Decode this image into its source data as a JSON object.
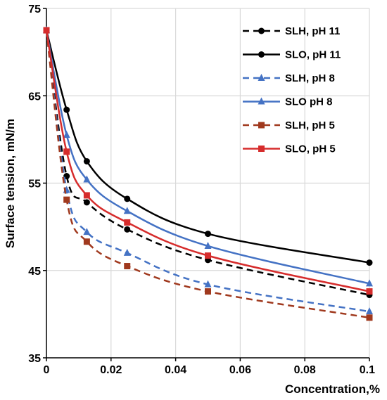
{
  "chart_data": {
    "type": "line",
    "title": "",
    "xlabel": "Concentration,%",
    "ylabel": "Surface tension, mN/m",
    "xlim": [
      0,
      0.1
    ],
    "ylim": [
      35,
      75
    ],
    "xticks": [
      0,
      0.02,
      0.04,
      0.06,
      0.08,
      0.1
    ],
    "xtick_labels": [
      "0",
      "0.02",
      "0.04",
      "0.06",
      "0.08",
      "0.1"
    ],
    "yticks": [
      35,
      45,
      55,
      65,
      75
    ],
    "ytick_labels": [
      "35",
      "45",
      "55",
      "65",
      "75"
    ],
    "grid": true,
    "legend_position": "top-right",
    "series": [
      {
        "name": "SLH, pH 11",
        "color": "#000000",
        "dashed": true,
        "marker": "circle",
        "x": [
          0,
          0.00625,
          0.0125,
          0.025,
          0.05,
          0.1
        ],
        "y": [
          72.5,
          55.8,
          52.8,
          49.7,
          46.2,
          42.2
        ]
      },
      {
        "name": "SLO, pH 11",
        "color": "#000000",
        "dashed": false,
        "marker": "circle",
        "x": [
          0,
          0.00625,
          0.0125,
          0.025,
          0.05,
          0.1
        ],
        "y": [
          72.5,
          63.4,
          57.5,
          53.2,
          49.2,
          45.9
        ]
      },
      {
        "name": "SLH, pH 8",
        "color": "#4472C4",
        "dashed": true,
        "marker": "triangle",
        "x": [
          0,
          0.00625,
          0.0125,
          0.025,
          0.05,
          0.1
        ],
        "y": [
          72.5,
          54.2,
          49.4,
          47.0,
          43.4,
          40.3
        ]
      },
      {
        "name": "SLO pH 8",
        "color": "#4472C4",
        "dashed": false,
        "marker": "triangle",
        "x": [
          0,
          0.00625,
          0.0125,
          0.025,
          0.05,
          0.1
        ],
        "y": [
          72.5,
          60.5,
          55.4,
          51.8,
          47.8,
          43.5
        ]
      },
      {
        "name": "SLH, pH 5",
        "color": "#A0391E",
        "dashed": true,
        "marker": "square",
        "x": [
          0,
          0.00625,
          0.0125,
          0.025,
          0.05,
          0.1
        ],
        "y": [
          72.5,
          53.1,
          48.3,
          45.5,
          42.6,
          39.6
        ]
      },
      {
        "name": "SLO, pH 5",
        "color": "#D62C2C",
        "dashed": false,
        "marker": "square",
        "x": [
          0,
          0.00625,
          0.0125,
          0.025,
          0.05,
          0.1
        ],
        "y": [
          72.5,
          58.6,
          53.6,
          50.5,
          46.7,
          42.6
        ]
      }
    ]
  }
}
